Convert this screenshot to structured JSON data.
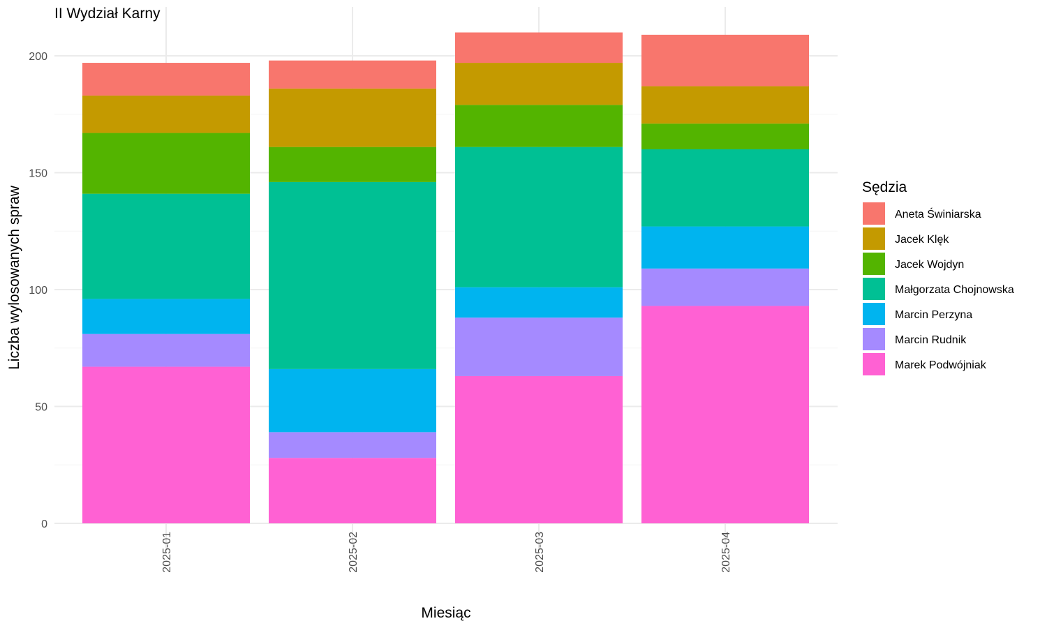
{
  "chart_data": {
    "type": "bar",
    "stacked": true,
    "title": "II Wydział Karny",
    "xlabel": "Miesiąc",
    "ylabel": "Liczba wylosowanych spraw",
    "categories": [
      "2025-01",
      "2025-02",
      "2025-03",
      "2025-04"
    ],
    "ylim": [
      0,
      210
    ],
    "yticks": [
      0,
      50,
      100,
      150,
      200
    ],
    "grid": true,
    "legend": {
      "title": "Sędzia",
      "position": "right"
    },
    "series": [
      {
        "name": "Marek Podwójniak",
        "color": "#FF61D3",
        "values": [
          67,
          28,
          63,
          93
        ]
      },
      {
        "name": "Marcin Rudnik",
        "color": "#A58AFF",
        "values": [
          14,
          11,
          25,
          16
        ]
      },
      {
        "name": "Marcin Perzyna",
        "color": "#00B4EF",
        "values": [
          15,
          27,
          13,
          18
        ]
      },
      {
        "name": "Małgorzata Chojnowska",
        "color": "#00C094",
        "values": [
          45,
          80,
          60,
          33
        ]
      },
      {
        "name": "Jacek Wojdyn",
        "color": "#53B400",
        "values": [
          26,
          15,
          18,
          11
        ]
      },
      {
        "name": "Jacek Klęk",
        "color": "#C49A00",
        "values": [
          16,
          25,
          18,
          16
        ]
      },
      {
        "name": "Aneta Świniarska",
        "color": "#F8766D",
        "values": [
          14,
          12,
          13,
          22
        ]
      }
    ],
    "legend_order": [
      "Aneta Świniarska",
      "Jacek Klęk",
      "Jacek Wojdyn",
      "Małgorzata Chojnowska",
      "Marcin Perzyna",
      "Marcin Rudnik",
      "Marek Podwójniak"
    ]
  }
}
